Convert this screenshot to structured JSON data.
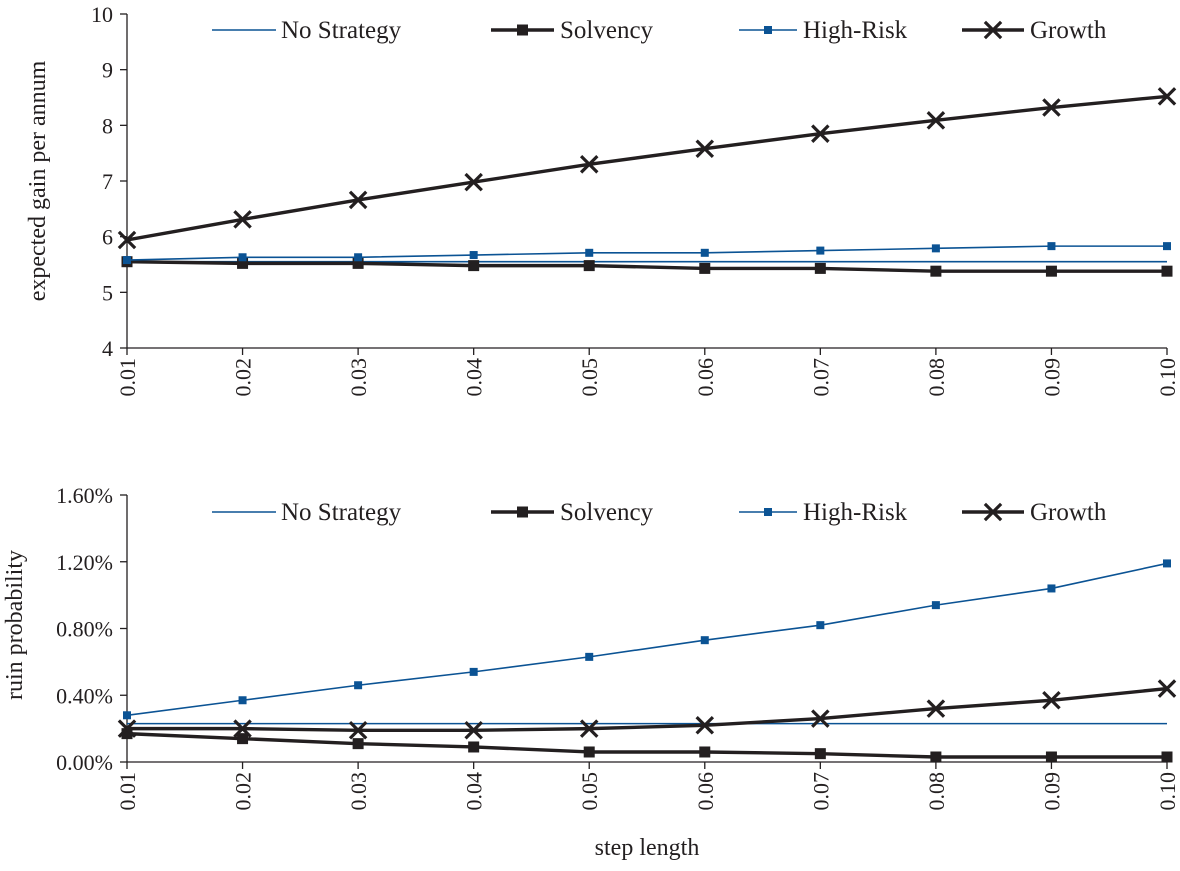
{
  "colors": {
    "axis": "#231f20",
    "no_strategy": "#0b5394",
    "solvency": "#231f20",
    "high_risk": "#0b5394",
    "growth": "#231f20"
  },
  "chart_data": [
    {
      "type": "line",
      "ylabel": "expected gain per annum",
      "xlabel": "",
      "ylim": [
        4,
        10
      ],
      "yticks": [
        4,
        5,
        6,
        7,
        8,
        9,
        10
      ],
      "ytick_labels": [
        "4",
        "5",
        "6",
        "7",
        "8",
        "9",
        "10"
      ],
      "categories": [
        "0.01",
        "0.02",
        "0.03",
        "0.04",
        "0.05",
        "0.06",
        "0.07",
        "0.08",
        "0.09",
        "0.10"
      ],
      "grid": false,
      "legend": "top",
      "series": [
        {
          "name": "No Strategy",
          "key": "no_strategy",
          "marker": "none",
          "width": "thin",
          "values": [
            5.55,
            5.55,
            5.55,
            5.55,
            5.55,
            5.55,
            5.55,
            5.55,
            5.55,
            5.55
          ]
        },
        {
          "name": "Solvency",
          "key": "solvency",
          "marker": "square",
          "width": "thick",
          "values": [
            5.55,
            5.52,
            5.52,
            5.48,
            5.48,
            5.43,
            5.43,
            5.38,
            5.38,
            5.38
          ]
        },
        {
          "name": "High-Risk",
          "key": "high_risk",
          "marker": "small-square",
          "width": "thin",
          "values": [
            5.58,
            5.63,
            5.63,
            5.67,
            5.71,
            5.71,
            5.75,
            5.79,
            5.83,
            5.83
          ]
        },
        {
          "name": "Growth",
          "key": "growth",
          "marker": "x",
          "width": "thick",
          "values": [
            5.94,
            6.31,
            6.66,
            6.98,
            7.3,
            7.58,
            7.85,
            8.09,
            8.32,
            8.52
          ]
        }
      ]
    },
    {
      "type": "line",
      "ylabel": "ruin probability",
      "xlabel": "step length",
      "ylim": [
        0,
        1.6
      ],
      "yticks": [
        0,
        0.4,
        0.8,
        1.2,
        1.6
      ],
      "ytick_labels": [
        "0.00%",
        "0.40%",
        "0.80%",
        "1.20%",
        "1.60%"
      ],
      "categories": [
        "0.01",
        "0.02",
        "0.03",
        "0.04",
        "0.05",
        "0.06",
        "0.07",
        "0.08",
        "0.09",
        "0.10"
      ],
      "grid": false,
      "legend": "top",
      "series": [
        {
          "name": "No Strategy",
          "key": "no_strategy",
          "marker": "none",
          "width": "thin",
          "values": [
            0.23,
            0.23,
            0.23,
            0.23,
            0.23,
            0.23,
            0.23,
            0.23,
            0.23,
            0.23
          ]
        },
        {
          "name": "Solvency",
          "key": "solvency",
          "marker": "square",
          "width": "thick",
          "values": [
            0.17,
            0.14,
            0.11,
            0.09,
            0.06,
            0.06,
            0.05,
            0.03,
            0.03,
            0.03
          ]
        },
        {
          "name": "High-Risk",
          "key": "high_risk",
          "marker": "small-square",
          "width": "thin",
          "values": [
            0.28,
            0.37,
            0.46,
            0.54,
            0.63,
            0.73,
            0.82,
            0.94,
            1.04,
            1.19
          ]
        },
        {
          "name": "Growth",
          "key": "growth",
          "marker": "x",
          "width": "thick",
          "values": [
            0.2,
            0.2,
            0.19,
            0.19,
            0.2,
            0.22,
            0.26,
            0.32,
            0.37,
            0.44
          ]
        }
      ]
    }
  ]
}
